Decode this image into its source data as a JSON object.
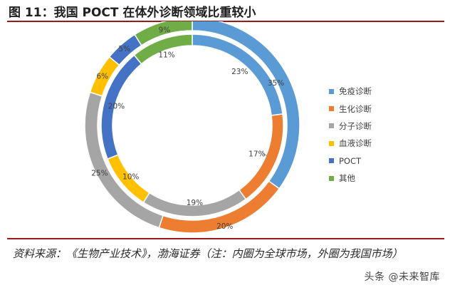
{
  "title": "图 11：我国 POCT 在体外诊断领域比重较小",
  "source_note": "资料来源：《生物产业技术》，渤海证券（注：内圈为全球市场，外圈为我国市场）",
  "watermark": "头条 @未来智库",
  "chart_data": {
    "type": "pie",
    "subtype": "double-donut",
    "categories": [
      "免疫诊断",
      "生化诊断",
      "分子诊断",
      "血液诊断",
      "POCT",
      "其他"
    ],
    "colors": [
      "#5b9bd5",
      "#ed7d31",
      "#a5a5a5",
      "#ffc000",
      "#4472c4",
      "#70ad47"
    ],
    "series": [
      {
        "ring": "inner",
        "values": [
          23,
          17,
          19,
          10,
          20,
          11
        ],
        "labels": [
          "23%",
          "17%",
          "19%",
          "10%",
          "20%",
          "11%"
        ]
      },
      {
        "ring": "outer",
        "values": [
          35,
          20,
          25,
          6,
          5,
          9
        ],
        "labels": [
          "35%",
          "20%",
          "25%",
          "6%",
          "5%",
          "9%"
        ]
      }
    ],
    "legend_position": "right"
  }
}
